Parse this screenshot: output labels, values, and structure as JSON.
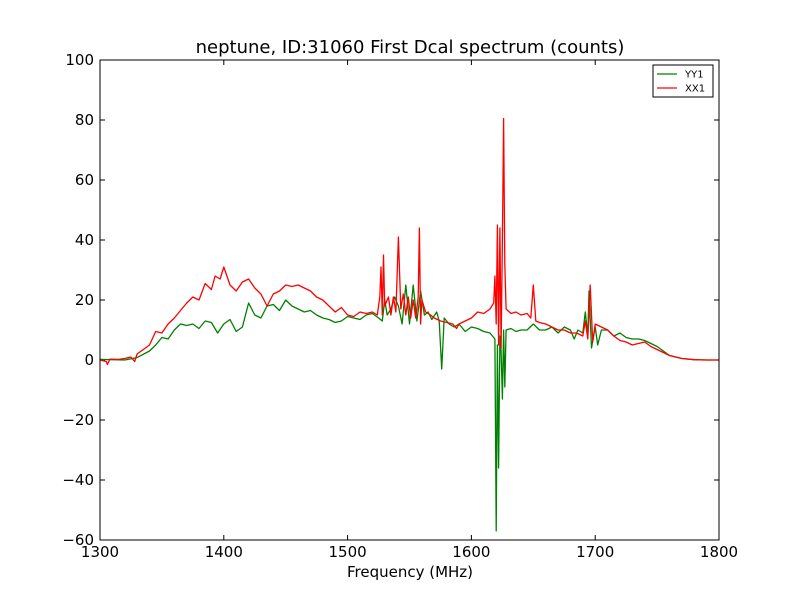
{
  "chart_data": {
    "type": "line",
    "title": "neptune, ID:31060 First Dcal spectrum (counts)",
    "xlabel": "Frequency (MHz)",
    "ylabel": "",
    "xlim": [
      1300,
      1800
    ],
    "ylim": [
      -60,
      100
    ],
    "xticks": [
      1300,
      1400,
      1500,
      1600,
      1700,
      1800
    ],
    "yticks": [
      -60,
      -40,
      -20,
      0,
      20,
      40,
      60,
      80,
      100
    ],
    "ytick_labels": [
      "−60",
      "−40",
      "−20",
      "0",
      "20",
      "40",
      "60",
      "80",
      "100"
    ],
    "grid": false,
    "legend": "top-right",
    "series": [
      {
        "name": "YY1",
        "color": "#008000",
        "points": [
          [
            1300,
            0.2
          ],
          [
            1310,
            0.1
          ],
          [
            1320,
            0.0
          ],
          [
            1330,
            0.8
          ],
          [
            1340,
            3.0
          ],
          [
            1345,
            5.0
          ],
          [
            1350,
            7.5
          ],
          [
            1355,
            7.0
          ],
          [
            1360,
            10.0
          ],
          [
            1365,
            12.0
          ],
          [
            1370,
            11.5
          ],
          [
            1375,
            12.0
          ],
          [
            1380,
            10.5
          ],
          [
            1385,
            13.0
          ],
          [
            1390,
            12.5
          ],
          [
            1395,
            9.0
          ],
          [
            1400,
            12.0
          ],
          [
            1405,
            13.5
          ],
          [
            1410,
            9.5
          ],
          [
            1415,
            11.0
          ],
          [
            1420,
            19.0
          ],
          [
            1425,
            15.0
          ],
          [
            1430,
            14.0
          ],
          [
            1435,
            18.0
          ],
          [
            1440,
            18.5
          ],
          [
            1445,
            16.5
          ],
          [
            1450,
            20.0
          ],
          [
            1455,
            18.0
          ],
          [
            1460,
            17.0
          ],
          [
            1465,
            16.0
          ],
          [
            1470,
            16.5
          ],
          [
            1475,
            15.0
          ],
          [
            1480,
            14.0
          ],
          [
            1485,
            13.5
          ],
          [
            1490,
            12.5
          ],
          [
            1495,
            13.0
          ],
          [
            1500,
            14.5
          ],
          [
            1505,
            14.0
          ],
          [
            1510,
            13.5
          ],
          [
            1515,
            15.0
          ],
          [
            1520,
            15.5
          ],
          [
            1525,
            14.0
          ],
          [
            1528,
            13.0
          ],
          [
            1530,
            20.0
          ],
          [
            1532,
            15.0
          ],
          [
            1535,
            17.0
          ],
          [
            1538,
            21.0
          ],
          [
            1541,
            18.0
          ],
          [
            1544,
            12.0
          ],
          [
            1547,
            25.0
          ],
          [
            1550,
            12.0
          ],
          [
            1553,
            25.0
          ],
          [
            1556,
            13.0
          ],
          [
            1559,
            23.0
          ],
          [
            1562,
            15.0
          ],
          [
            1565,
            16.0
          ],
          [
            1568,
            13.5
          ],
          [
            1572,
            16.0
          ],
          [
            1574,
            13.0
          ],
          [
            1576,
            -3.0
          ],
          [
            1578,
            14.0
          ],
          [
            1582,
            12.0
          ],
          [
            1586,
            11.0
          ],
          [
            1590,
            12.0
          ],
          [
            1595,
            9.5
          ],
          [
            1600,
            11.0
          ],
          [
            1605,
            10.5
          ],
          [
            1610,
            9.5
          ],
          [
            1615,
            9.0
          ],
          [
            1619,
            7.0
          ],
          [
            1620,
            -57.0
          ],
          [
            1621,
            5.0
          ],
          [
            1622,
            -36.0
          ],
          [
            1623,
            8.0
          ],
          [
            1624,
            3.0
          ],
          [
            1625,
            -13.0
          ],
          [
            1626,
            10.0
          ],
          [
            1627,
            -9.0
          ],
          [
            1628,
            10.0
          ],
          [
            1632,
            10.5
          ],
          [
            1636,
            9.5
          ],
          [
            1640,
            10.0
          ],
          [
            1645,
            10.0
          ],
          [
            1650,
            12.0
          ],
          [
            1655,
            10.0
          ],
          [
            1660,
            10.0
          ],
          [
            1665,
            11.0
          ],
          [
            1670,
            9.0
          ],
          [
            1675,
            11.0
          ],
          [
            1680,
            10.0
          ],
          [
            1683,
            7.0
          ],
          [
            1686,
            10.0
          ],
          [
            1690,
            9.0
          ],
          [
            1692,
            16.0
          ],
          [
            1694,
            8.0
          ],
          [
            1695,
            23.0
          ],
          [
            1697,
            4.0
          ],
          [
            1700,
            11.0
          ],
          [
            1702,
            5.0
          ],
          [
            1705,
            10.0
          ],
          [
            1710,
            10.0
          ],
          [
            1715,
            8.0
          ],
          [
            1720,
            9.0
          ],
          [
            1725,
            7.5
          ],
          [
            1730,
            7.0
          ],
          [
            1735,
            7.0
          ],
          [
            1740,
            6.5
          ],
          [
            1745,
            5.5
          ],
          [
            1750,
            4.5
          ],
          [
            1755,
            3.0
          ],
          [
            1760,
            1.5
          ],
          [
            1765,
            1.0
          ],
          [
            1770,
            0.5
          ],
          [
            1780,
            0.1
          ],
          [
            1790,
            0.0
          ],
          [
            1800,
            0.0
          ]
        ]
      },
      {
        "name": "XX1",
        "color": "#ff0000",
        "points": [
          [
            1300,
            0.0
          ],
          [
            1305,
            -0.5
          ],
          [
            1306,
            -1.5
          ],
          [
            1308,
            0.3
          ],
          [
            1315,
            0.2
          ],
          [
            1320,
            0.5
          ],
          [
            1325,
            1.0
          ],
          [
            1328,
            -0.5
          ],
          [
            1330,
            2.0
          ],
          [
            1335,
            3.5
          ],
          [
            1340,
            5.0
          ],
          [
            1345,
            9.5
          ],
          [
            1350,
            9.0
          ],
          [
            1355,
            12.0
          ],
          [
            1360,
            14.0
          ],
          [
            1365,
            16.5
          ],
          [
            1370,
            19.0
          ],
          [
            1375,
            21.0
          ],
          [
            1380,
            20.0
          ],
          [
            1385,
            25.5
          ],
          [
            1390,
            23.5
          ],
          [
            1393,
            28.0
          ],
          [
            1397,
            27.0
          ],
          [
            1400,
            31.0
          ],
          [
            1405,
            25.0
          ],
          [
            1410,
            23.0
          ],
          [
            1415,
            26.0
          ],
          [
            1420,
            27.0
          ],
          [
            1425,
            24.0
          ],
          [
            1430,
            22.0
          ],
          [
            1435,
            18.0
          ],
          [
            1440,
            22.0
          ],
          [
            1445,
            23.0
          ],
          [
            1450,
            25.0
          ],
          [
            1455,
            24.5
          ],
          [
            1460,
            25.0
          ],
          [
            1465,
            24.0
          ],
          [
            1470,
            23.0
          ],
          [
            1475,
            21.0
          ],
          [
            1480,
            20.0
          ],
          [
            1485,
            18.0
          ],
          [
            1490,
            16.0
          ],
          [
            1495,
            17.5
          ],
          [
            1500,
            15.0
          ],
          [
            1505,
            14.5
          ],
          [
            1510,
            16.0
          ],
          [
            1515,
            15.5
          ],
          [
            1520,
            16.0
          ],
          [
            1524,
            15.0
          ],
          [
            1526,
            21.0
          ],
          [
            1527,
            31.0
          ],
          [
            1528,
            15.0
          ],
          [
            1529,
            35.0
          ],
          [
            1530,
            18.0
          ],
          [
            1533,
            21.0
          ],
          [
            1535,
            15.0
          ],
          [
            1537,
            21.0
          ],
          [
            1539,
            16.0
          ],
          [
            1541,
            41.0
          ],
          [
            1543,
            17.0
          ],
          [
            1545,
            22.0
          ],
          [
            1547,
            15.0
          ],
          [
            1549,
            21.0
          ],
          [
            1551,
            14.0
          ],
          [
            1553,
            20.0
          ],
          [
            1555,
            14.0
          ],
          [
            1557,
            21.0
          ],
          [
            1558,
            44.0
          ],
          [
            1559,
            12.0
          ],
          [
            1560,
            20.0
          ],
          [
            1563,
            16.0
          ],
          [
            1567,
            15.0
          ],
          [
            1570,
            14.0
          ],
          [
            1575,
            13.0
          ],
          [
            1580,
            12.5
          ],
          [
            1585,
            12.0
          ],
          [
            1588,
            10.5
          ],
          [
            1590,
            12.0
          ],
          [
            1595,
            13.0
          ],
          [
            1600,
            14.0
          ],
          [
            1605,
            16.0
          ],
          [
            1610,
            15.5
          ],
          [
            1615,
            17.0
          ],
          [
            1618,
            19.0
          ],
          [
            1619,
            28.0
          ],
          [
            1620,
            12.0
          ],
          [
            1621,
            45.0
          ],
          [
            1622,
            5.0
          ],
          [
            1623,
            44.0
          ],
          [
            1624,
            4.0
          ],
          [
            1625,
            40.0
          ],
          [
            1626,
            80.5
          ],
          [
            1627,
            32.0
          ],
          [
            1628,
            17.0
          ],
          [
            1632,
            15.5
          ],
          [
            1636,
            16.0
          ],
          [
            1640,
            15.0
          ],
          [
            1645,
            15.5
          ],
          [
            1648,
            14.0
          ],
          [
            1650,
            25.0
          ],
          [
            1652,
            13.0
          ],
          [
            1655,
            12.5
          ],
          [
            1660,
            12.0
          ],
          [
            1665,
            11.0
          ],
          [
            1670,
            10.0
          ],
          [
            1675,
            10.0
          ],
          [
            1680,
            9.0
          ],
          [
            1685,
            9.0
          ],
          [
            1690,
            8.0
          ],
          [
            1692,
            13.0
          ],
          [
            1694,
            7.0
          ],
          [
            1696,
            25.0
          ],
          [
            1698,
            6.0
          ],
          [
            1700,
            12.0
          ],
          [
            1705,
            11.0
          ],
          [
            1710,
            10.0
          ],
          [
            1715,
            8.0
          ],
          [
            1720,
            6.5
          ],
          [
            1725,
            6.0
          ],
          [
            1730,
            5.0
          ],
          [
            1735,
            5.5
          ],
          [
            1740,
            6.0
          ],
          [
            1745,
            4.5
          ],
          [
            1750,
            3.5
          ],
          [
            1755,
            2.5
          ],
          [
            1760,
            1.5
          ],
          [
            1765,
            1.0
          ],
          [
            1770,
            0.5
          ],
          [
            1780,
            0.1
          ],
          [
            1790,
            0.0
          ],
          [
            1800,
            0.0
          ]
        ]
      }
    ]
  }
}
